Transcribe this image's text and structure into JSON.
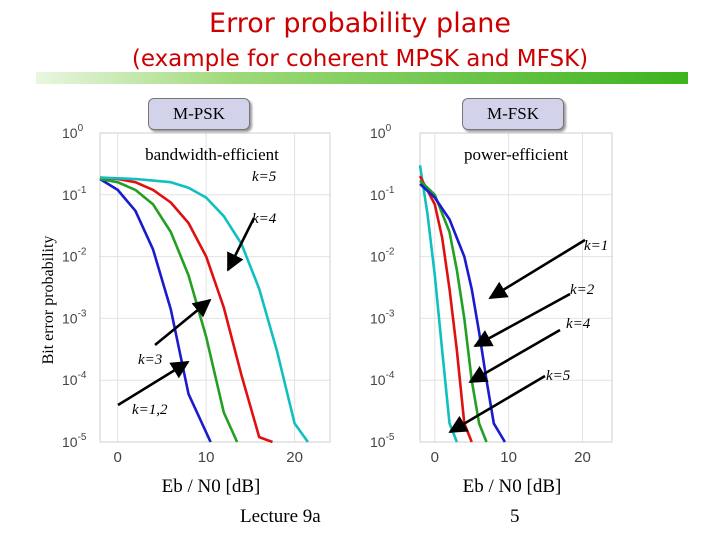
{
  "slide": {
    "title_line1": "Error probability plane",
    "title_line2": "(example for coherent MPSK and MFSK)",
    "footer_left": "Lecture 9a",
    "footer_right": "5",
    "colors": {
      "title": "#cc0000",
      "bar_end": "#3cb31f"
    }
  },
  "chart_data": [
    {
      "type": "line",
      "box_label": "M-PSK",
      "subtitle": "bandwidth-efficient",
      "xlabel": "Eb / N0 [dB]",
      "ylabel": "Bit error probability",
      "ylim": [
        1e-05,
        1
      ],
      "yscale": "log",
      "xlim": [
        -2,
        24
      ],
      "x_ticks": [
        0,
        10,
        20
      ],
      "y_ticks": [
        "10^0",
        "10^-1",
        "10^-2",
        "10^-3",
        "10^-4",
        "10^-5"
      ],
      "series": [
        {
          "color": "#1a1ad0",
          "x": [
            -2,
            0,
            2,
            4,
            6,
            8,
            10.5
          ],
          "y": [
            0.18,
            0.12,
            0.055,
            0.013,
            0.0014,
            6e-05,
            1e-05
          ]
        },
        {
          "color": "#22a022",
          "x": [
            -2,
            0,
            2,
            4,
            6,
            8,
            10,
            12,
            13.5
          ],
          "y": [
            0.18,
            0.16,
            0.12,
            0.07,
            0.025,
            0.005,
            0.0005,
            3e-05,
            1e-05
          ]
        },
        {
          "color": "#e01010",
          "x": [
            -2,
            0,
            2,
            4,
            6,
            8,
            10,
            12,
            14,
            16,
            17.5
          ],
          "y": [
            0.19,
            0.18,
            0.16,
            0.12,
            0.075,
            0.035,
            0.01,
            0.0015,
            0.00012,
            1.2e-05,
            1e-05
          ]
        },
        {
          "color": "#10c0c0",
          "x": [
            -2,
            0,
            2,
            4,
            6,
            8,
            10,
            12,
            14,
            16,
            18,
            20,
            21.5
          ],
          "y": [
            0.19,
            0.185,
            0.18,
            0.17,
            0.16,
            0.13,
            0.09,
            0.045,
            0.016,
            0.003,
            0.0003,
            2e-05,
            1e-05
          ]
        }
      ],
      "annotations": [
        "k=5",
        "k=4",
        "k=3",
        "k=1,2"
      ]
    },
    {
      "type": "line",
      "box_label": "M-FSK",
      "subtitle": "power-efficient",
      "xlabel": "Eb / N0 [dB]",
      "ylim": [
        1e-05,
        1
      ],
      "yscale": "log",
      "xlim": [
        -2,
        24
      ],
      "x_ticks": [
        0,
        10,
        20
      ],
      "y_ticks": [
        "10^0",
        "10^-1",
        "10^-2",
        "10^-3",
        "10^-4",
        "10^-5"
      ],
      "series": [
        {
          "color": "#10c0c0",
          "x": [
            -2,
            -1,
            0,
            1,
            2,
            3
          ],
          "y": [
            0.3,
            0.05,
            0.005,
            0.0003,
            2e-05,
            1e-05
          ]
        },
        {
          "color": "#e01010",
          "x": [
            -2,
            0,
            1,
            2,
            3,
            4,
            5
          ],
          "y": [
            0.2,
            0.07,
            0.02,
            0.003,
            0.0003,
            2e-05,
            1e-05
          ]
        },
        {
          "color": "#22a022",
          "x": [
            -2,
            0,
            2,
            3,
            4,
            5,
            6,
            7
          ],
          "y": [
            0.17,
            0.1,
            0.025,
            0.006,
            0.001,
            0.0001,
            2e-05,
            1e-05
          ]
        },
        {
          "color": "#1a1ad0",
          "x": [
            -2,
            0,
            2,
            4,
            5,
            6,
            7,
            8,
            9.5
          ],
          "y": [
            0.15,
            0.09,
            0.04,
            0.01,
            0.003,
            0.0006,
            0.0001,
            2e-05,
            1e-05
          ]
        }
      ],
      "annotations": [
        "k=1",
        "k=2",
        "k=4",
        "k=5"
      ]
    }
  ]
}
